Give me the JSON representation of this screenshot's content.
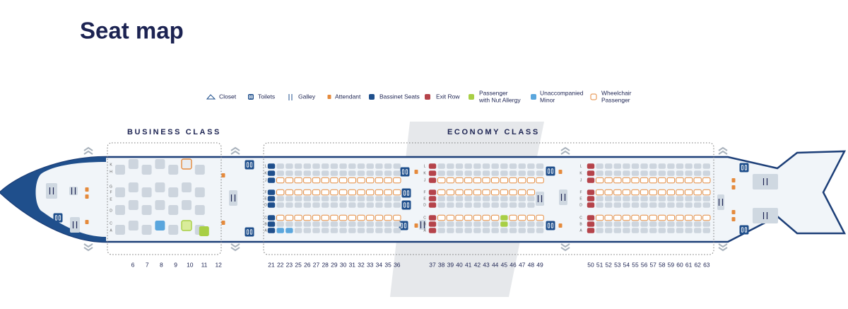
{
  "title": "Seat map",
  "legend": [
    {
      "lines": [
        "Closet"
      ]
    },
    {
      "lines": [
        "Toilets"
      ]
    },
    {
      "lines": [
        "Galley"
      ]
    },
    {
      "lines": [
        "Attendant"
      ]
    },
    {
      "lines": [
        "Bassinet Seats"
      ]
    },
    {
      "lines": [
        "Exit Row"
      ]
    },
    {
      "lines": [
        "Passenger",
        "with Nut Allergy"
      ]
    },
    {
      "lines": [
        "Unaccompanied",
        "Minor"
      ]
    },
    {
      "lines": [
        "Wheelchair",
        "Passenger"
      ]
    }
  ],
  "business": {
    "label": "BUSINESS CLASS",
    "rows": [
      6,
      7,
      8,
      9,
      10,
      11,
      12
    ],
    "letters": [
      "K",
      "H",
      "G",
      "F",
      "E",
      "D",
      "C",
      "A"
    ]
  },
  "economy": {
    "label": "ECONOMY CLASS",
    "blocks": [
      {
        "rows": [
          21,
          22,
          23,
          25,
          26,
          27,
          28,
          29,
          30,
          31,
          32,
          33,
          34,
          35,
          36
        ]
      },
      {
        "rows": [
          37,
          38,
          39,
          40,
          41,
          42,
          43,
          44,
          45,
          46,
          47,
          48,
          49
        ]
      },
      {
        "rows": [
          50,
          51,
          52,
          53,
          54,
          55,
          56,
          57,
          58,
          59,
          60,
          61,
          62,
          63
        ]
      }
    ],
    "letters": [
      "L",
      "K",
      "J",
      "F",
      "E",
      "D",
      "C",
      "B",
      "A"
    ]
  }
}
